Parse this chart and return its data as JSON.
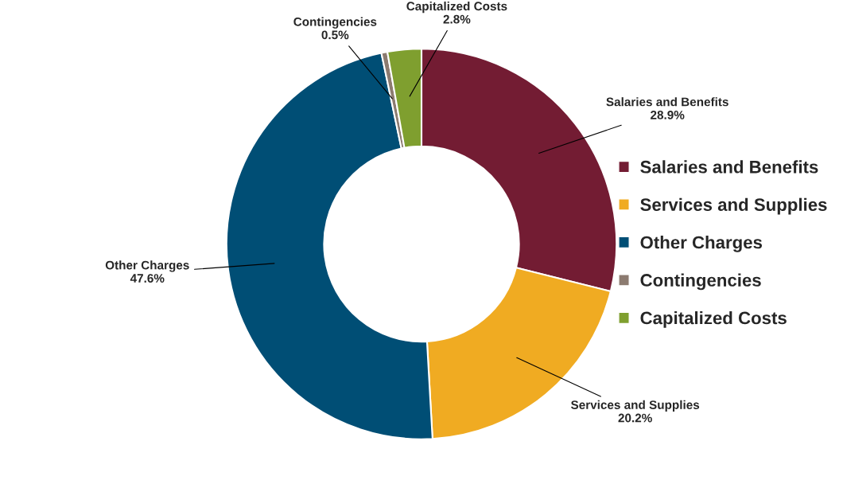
{
  "chart_data": {
    "type": "donut",
    "categories": [
      "Salaries and Benefits",
      "Services and Supplies",
      "Other Charges",
      "Contingencies",
      "Capitalized Costs"
    ],
    "values": [
      28.9,
      20.2,
      47.6,
      0.5,
      2.8
    ],
    "value_labels": [
      "28.9%",
      "20.2%",
      "47.6%",
      "0.5%",
      "2.8%"
    ],
    "colors": [
      "#731c33",
      "#f0ab22",
      "#004e75",
      "#8c7b70",
      "#7f9f2f"
    ],
    "legend": "right"
  }
}
